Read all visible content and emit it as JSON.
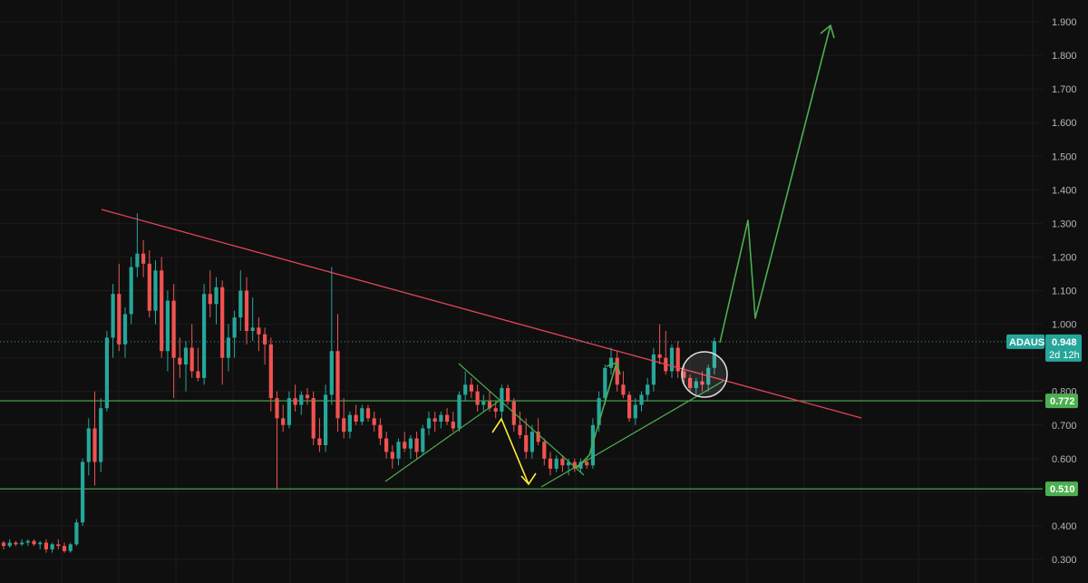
{
  "chart_data": {
    "type": "candlestick",
    "symbol": "ADAUSD",
    "last_price": "0.948",
    "countdown": "2d 12h",
    "ylim": [
      0.25,
      1.97
    ],
    "y_ticks": [
      "0.300",
      "0.400",
      "0.500",
      "0.600",
      "0.700",
      "0.800",
      "0.900",
      "1.000",
      "1.100",
      "1.200",
      "1.300",
      "1.400",
      "1.500",
      "1.600",
      "1.700",
      "1.800",
      "1.900"
    ],
    "levels": [
      {
        "label": "0.772",
        "value": 0.772
      },
      {
        "label": "0.510",
        "value": 0.51
      }
    ],
    "colors": {
      "up": "#26a69a",
      "down": "#ef5350",
      "trendline_down": "#e0455a",
      "trendline_up": "#4caf50",
      "projection": "#4caf50",
      "decline_arrow": "#ffeb3b",
      "level": "#4caf50",
      "price_line": "#26a69a",
      "grid": "#1b1b1b",
      "background": "#0f0f0f",
      "axis_text": "#b2b5be"
    },
    "candles": [
      [
        0.35,
        0.355,
        0.33,
        0.34
      ],
      [
        0.34,
        0.36,
        0.335,
        0.35
      ],
      [
        0.35,
        0.355,
        0.34,
        0.345
      ],
      [
        0.345,
        0.36,
        0.34,
        0.35
      ],
      [
        0.35,
        0.36,
        0.34,
        0.355
      ],
      [
        0.355,
        0.36,
        0.34,
        0.345
      ],
      [
        0.345,
        0.355,
        0.33,
        0.35
      ],
      [
        0.35,
        0.36,
        0.32,
        0.33
      ],
      [
        0.33,
        0.35,
        0.32,
        0.345
      ],
      [
        0.345,
        0.36,
        0.33,
        0.34
      ],
      [
        0.34,
        0.35,
        0.32,
        0.325
      ],
      [
        0.325,
        0.35,
        0.32,
        0.345
      ],
      [
        0.345,
        0.42,
        0.34,
        0.41
      ],
      [
        0.41,
        0.6,
        0.4,
        0.59
      ],
      [
        0.59,
        0.72,
        0.55,
        0.69
      ],
      [
        0.69,
        0.8,
        0.52,
        0.59
      ],
      [
        0.59,
        0.78,
        0.56,
        0.75
      ],
      [
        0.75,
        0.98,
        0.74,
        0.96
      ],
      [
        0.96,
        1.12,
        0.9,
        1.09
      ],
      [
        1.09,
        1.18,
        0.92,
        0.94
      ],
      [
        0.94,
        1.05,
        0.9,
        1.03
      ],
      [
        1.03,
        1.2,
        1.0,
        1.17
      ],
      [
        1.17,
        1.33,
        1.14,
        1.21
      ],
      [
        1.21,
        1.25,
        1.14,
        1.18
      ],
      [
        1.18,
        1.22,
        1.02,
        1.04
      ],
      [
        1.04,
        1.19,
        1.0,
        1.16
      ],
      [
        1.16,
        1.2,
        0.9,
        0.92
      ],
      [
        0.92,
        1.1,
        0.86,
        1.07
      ],
      [
        1.07,
        1.12,
        0.78,
        0.9
      ],
      [
        0.9,
        0.96,
        0.84,
        0.88
      ],
      [
        0.88,
        0.95,
        0.8,
        0.93
      ],
      [
        0.93,
        1.0,
        0.84,
        0.86
      ],
      [
        0.86,
        0.93,
        0.83,
        0.84
      ],
      [
        0.84,
        1.12,
        0.82,
        1.09
      ],
      [
        1.09,
        1.16,
        1.02,
        1.06
      ],
      [
        1.06,
        1.14,
        1.0,
        1.11
      ],
      [
        1.11,
        1.13,
        0.82,
        0.9
      ],
      [
        0.9,
        1.0,
        0.86,
        0.96
      ],
      [
        0.96,
        1.04,
        0.9,
        1.02
      ],
      [
        1.02,
        1.16,
        0.98,
        1.1
      ],
      [
        1.1,
        1.14,
        0.94,
        0.98
      ],
      [
        0.98,
        1.08,
        0.95,
        0.99
      ],
      [
        0.99,
        1.02,
        0.92,
        0.97
      ],
      [
        0.97,
        0.99,
        0.88,
        0.94
      ],
      [
        0.94,
        0.96,
        0.74,
        0.78
      ],
      [
        0.78,
        0.8,
        0.51,
        0.72
      ],
      [
        0.72,
        0.76,
        0.68,
        0.7
      ],
      [
        0.7,
        0.8,
        0.69,
        0.78
      ],
      [
        0.78,
        0.82,
        0.74,
        0.76
      ],
      [
        0.76,
        0.8,
        0.73,
        0.79
      ],
      [
        0.79,
        0.81,
        0.76,
        0.78
      ],
      [
        0.78,
        0.8,
        0.64,
        0.66
      ],
      [
        0.66,
        0.72,
        0.62,
        0.64
      ],
      [
        0.64,
        0.82,
        0.62,
        0.79
      ],
      [
        0.79,
        1.17,
        0.76,
        0.92
      ],
      [
        0.92,
        1.03,
        0.68,
        0.72
      ],
      [
        0.72,
        0.78,
        0.66,
        0.68
      ],
      [
        0.68,
        0.74,
        0.66,
        0.73
      ],
      [
        0.73,
        0.76,
        0.7,
        0.71
      ],
      [
        0.71,
        0.76,
        0.7,
        0.75
      ],
      [
        0.75,
        0.76,
        0.71,
        0.72
      ],
      [
        0.72,
        0.74,
        0.68,
        0.7
      ],
      [
        0.7,
        0.72,
        0.64,
        0.66
      ],
      [
        0.66,
        0.68,
        0.6,
        0.62
      ],
      [
        0.62,
        0.64,
        0.57,
        0.6
      ],
      [
        0.6,
        0.66,
        0.58,
        0.65
      ],
      [
        0.65,
        0.68,
        0.62,
        0.63
      ],
      [
        0.63,
        0.67,
        0.6,
        0.66
      ],
      [
        0.66,
        0.68,
        0.6,
        0.62
      ],
      [
        0.62,
        0.7,
        0.61,
        0.69
      ],
      [
        0.69,
        0.74,
        0.67,
        0.72
      ],
      [
        0.72,
        0.74,
        0.68,
        0.71
      ],
      [
        0.71,
        0.74,
        0.69,
        0.73
      ],
      [
        0.73,
        0.75,
        0.7,
        0.71
      ],
      [
        0.71,
        0.74,
        0.68,
        0.69
      ],
      [
        0.69,
        0.8,
        0.68,
        0.79
      ],
      [
        0.79,
        0.86,
        0.77,
        0.82
      ],
      [
        0.82,
        0.84,
        0.78,
        0.8
      ],
      [
        0.8,
        0.82,
        0.74,
        0.76
      ],
      [
        0.76,
        0.79,
        0.74,
        0.77
      ],
      [
        0.77,
        0.8,
        0.74,
        0.75
      ],
      [
        0.75,
        0.77,
        0.72,
        0.74
      ],
      [
        0.74,
        0.82,
        0.72,
        0.81
      ],
      [
        0.81,
        0.82,
        0.76,
        0.77
      ],
      [
        0.77,
        0.78,
        0.68,
        0.7
      ],
      [
        0.7,
        0.74,
        0.66,
        0.67
      ],
      [
        0.67,
        0.72,
        0.6,
        0.62
      ],
      [
        0.62,
        0.7,
        0.6,
        0.68
      ],
      [
        0.68,
        0.72,
        0.64,
        0.65
      ],
      [
        0.65,
        0.66,
        0.58,
        0.6
      ],
      [
        0.6,
        0.62,
        0.55,
        0.57
      ],
      [
        0.57,
        0.61,
        0.56,
        0.6
      ],
      [
        0.6,
        0.61,
        0.56,
        0.58
      ],
      [
        0.58,
        0.6,
        0.55,
        0.59
      ],
      [
        0.59,
        0.6,
        0.56,
        0.57
      ],
      [
        0.57,
        0.6,
        0.56,
        0.59
      ],
      [
        0.59,
        0.6,
        0.57,
        0.58
      ],
      [
        0.58,
        0.72,
        0.57,
        0.7
      ],
      [
        0.7,
        0.8,
        0.68,
        0.78
      ],
      [
        0.78,
        0.88,
        0.76,
        0.87
      ],
      [
        0.87,
        0.93,
        0.85,
        0.9
      ],
      [
        0.9,
        0.92,
        0.8,
        0.82
      ],
      [
        0.82,
        0.86,
        0.78,
        0.79
      ],
      [
        0.79,
        0.8,
        0.71,
        0.72
      ],
      [
        0.72,
        0.78,
        0.7,
        0.76
      ],
      [
        0.76,
        0.8,
        0.74,
        0.79
      ],
      [
        0.79,
        0.84,
        0.77,
        0.82
      ],
      [
        0.82,
        0.93,
        0.8,
        0.91
      ],
      [
        0.91,
        1.0,
        0.88,
        0.9
      ],
      [
        0.9,
        0.98,
        0.85,
        0.86
      ],
      [
        0.86,
        0.94,
        0.84,
        0.93
      ],
      [
        0.93,
        0.95,
        0.84,
        0.86
      ],
      [
        0.86,
        0.88,
        0.82,
        0.84
      ],
      [
        0.84,
        0.85,
        0.8,
        0.81
      ],
      [
        0.81,
        0.84,
        0.79,
        0.83
      ],
      [
        0.83,
        0.86,
        0.8,
        0.82
      ],
      [
        0.82,
        0.88,
        0.8,
        0.87
      ],
      [
        0.87,
        0.96,
        0.85,
        0.95
      ]
    ]
  }
}
